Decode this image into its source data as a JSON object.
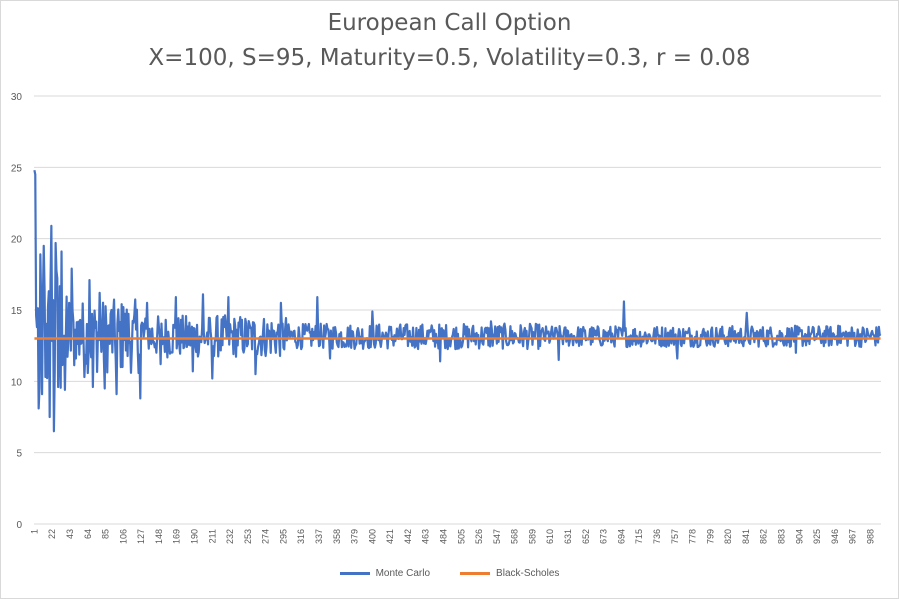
{
  "chart_data": {
    "type": "line",
    "title": "European Call Option",
    "subtitle": "X=100, S=95, Maturity=0.5, Volatility=0.3, r = 0.08",
    "xlabel": "",
    "ylabel": "",
    "ylim": [
      0,
      30
    ],
    "yticks": [
      0,
      5,
      10,
      15,
      20,
      25,
      30
    ],
    "grid": true,
    "legend_position": "bottom",
    "x_tick_labels": [
      "1",
      "22",
      "43",
      "64",
      "85",
      "106",
      "127",
      "148",
      "169",
      "190",
      "211",
      "232",
      "253",
      "274",
      "295",
      "316",
      "337",
      "358",
      "379",
      "400",
      "421",
      "442",
      "463",
      "484",
      "505",
      "526",
      "547",
      "568",
      "589",
      "610",
      "631",
      "652",
      "673",
      "694",
      "715",
      "736",
      "757",
      "778",
      "799",
      "820",
      "841",
      "862",
      "883",
      "904",
      "925",
      "946",
      "967",
      "988"
    ],
    "x_count": 1000,
    "series": [
      {
        "name": "Monte Carlo",
        "color": "#4472c4",
        "sampled_points": [
          {
            "x": 1,
            "y": 24.8
          },
          {
            "x": 2,
            "y": 24.5
          },
          {
            "x": 4,
            "y": 13.8
          },
          {
            "x": 6,
            "y": 8.1
          },
          {
            "x": 8,
            "y": 18.9
          },
          {
            "x": 10,
            "y": 9.1
          },
          {
            "x": 12,
            "y": 19.5
          },
          {
            "x": 14,
            "y": 10.3
          },
          {
            "x": 17,
            "y": 15.2
          },
          {
            "x": 19,
            "y": 7.5
          },
          {
            "x": 21,
            "y": 20.9
          },
          {
            "x": 24,
            "y": 6.5
          },
          {
            "x": 26,
            "y": 19.7
          },
          {
            "x": 29,
            "y": 9.6
          },
          {
            "x": 33,
            "y": 19.1
          },
          {
            "x": 37,
            "y": 9.4
          },
          {
            "x": 42,
            "y": 15.5
          },
          {
            "x": 45,
            "y": 17.9
          },
          {
            "x": 50,
            "y": 11.6
          },
          {
            "x": 55,
            "y": 14.3
          },
          {
            "x": 60,
            "y": 10.3
          },
          {
            "x": 66,
            "y": 17.1
          },
          {
            "x": 70,
            "y": 9.6
          },
          {
            "x": 78,
            "y": 16.2
          },
          {
            "x": 84,
            "y": 9.5
          },
          {
            "x": 92,
            "y": 15.0
          },
          {
            "x": 98,
            "y": 9.1
          },
          {
            "x": 106,
            "y": 15.2
          },
          {
            "x": 118,
            "y": 14.1
          },
          {
            "x": 126,
            "y": 8.8
          },
          {
            "x": 134,
            "y": 15.5
          },
          {
            "x": 150,
            "y": 11.2
          },
          {
            "x": 168,
            "y": 15.9
          },
          {
            "x": 188,
            "y": 10.7
          },
          {
            "x": 200,
            "y": 16.1
          },
          {
            "x": 211,
            "y": 10.2
          },
          {
            "x": 230,
            "y": 15.9
          },
          {
            "x": 262,
            "y": 10.5
          },
          {
            "x": 292,
            "y": 15.5
          },
          {
            "x": 335,
            "y": 15.9
          },
          {
            "x": 350,
            "y": 11.6
          },
          {
            "x": 400,
            "y": 14.9
          },
          {
            "x": 480,
            "y": 11.4
          },
          {
            "x": 540,
            "y": 14.2
          },
          {
            "x": 620,
            "y": 11.5
          },
          {
            "x": 697,
            "y": 15.6
          },
          {
            "x": 760,
            "y": 11.6
          },
          {
            "x": 842,
            "y": 14.8
          },
          {
            "x": 900,
            "y": 12.0
          },
          {
            "x": 950,
            "y": 13.9
          },
          {
            "x": 1000,
            "y": 13.2
          }
        ]
      },
      {
        "name": "Black-Scholes",
        "color": "#ed7d31",
        "constant_value": 13.0
      }
    ]
  }
}
